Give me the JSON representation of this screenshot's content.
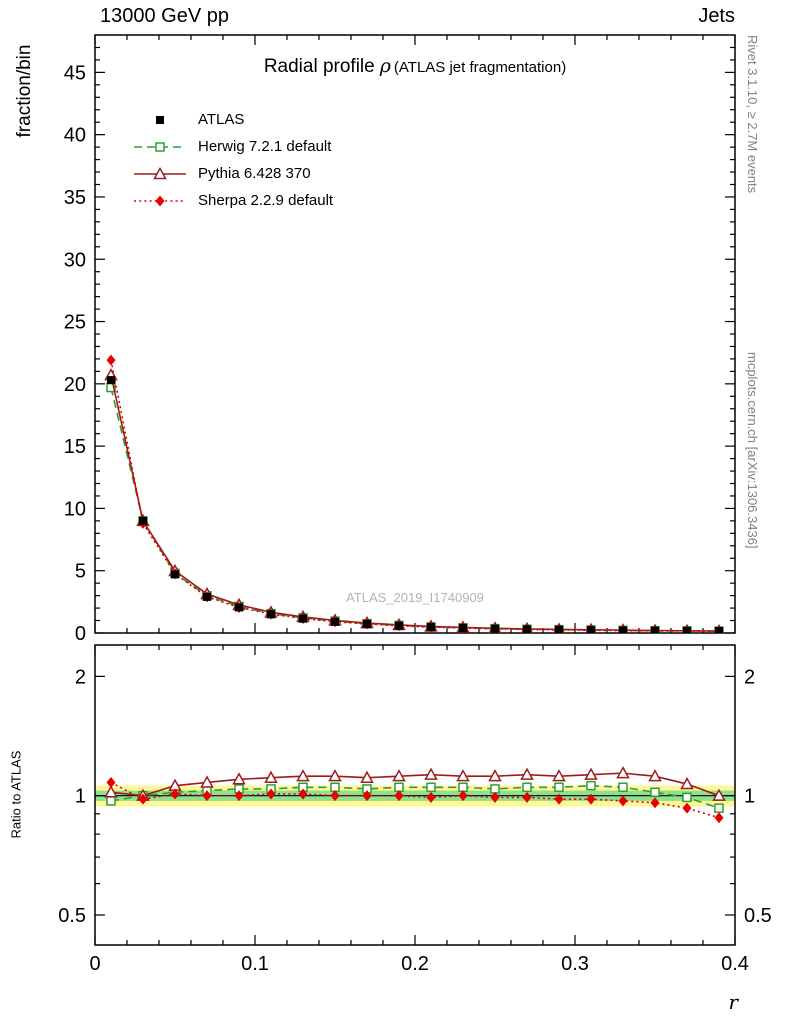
{
  "header": {
    "left": "13000 GeV pp",
    "right": "Jets"
  },
  "side_notes": {
    "top_right": "Rivet 3.1.10, ≥ 2.7M events",
    "bottom_right": "mcplots.cern.ch [arXiv:1306.3436]"
  },
  "watermark": "ATLAS_2019_I1740909",
  "title": {
    "main": "Radial profile",
    "symbol": "ρ",
    "paren": "(ATLAS jet fragmentation)"
  },
  "axes": {
    "ylabel": "fraction/bin",
    "ratio_ylabel": "Ratio to ATLAS",
    "xlabel": "r"
  },
  "chart_data": {
    "type": "line",
    "title": "Radial profile ρ (ATLAS jet fragmentation)",
    "xlabel": "r",
    "ylabel": "fraction/bin",
    "ratio_ylabel": "Ratio to ATLAS",
    "xlim": [
      0,
      0.4
    ],
    "ylim": [
      0,
      48
    ],
    "ratio_ylim": [
      0.42,
      2.4
    ],
    "ratio_scale": "log",
    "grid": false,
    "legend_position": "top-left-inside",
    "x_ticks": {
      "major": [
        0,
        0.1,
        0.2,
        0.3,
        0.4
      ],
      "labels": [
        "0",
        "0.1",
        "0.2",
        "0.3",
        "0.4"
      ],
      "minor_step": 0.02
    },
    "y_ticks": {
      "major": [
        0,
        5,
        10,
        15,
        20,
        25,
        30,
        35,
        40,
        45
      ],
      "labels": [
        "0",
        "5",
        "10",
        "15",
        "20",
        "25",
        "30",
        "35",
        "40",
        "45"
      ],
      "minor_step": 1
    },
    "ratio_ticks": {
      "major": [
        0.5,
        1,
        2
      ],
      "labels": [
        "0.5",
        "1",
        "2"
      ],
      "minor": [
        0.6,
        0.7,
        0.8,
        0.9
      ]
    },
    "x": [
      0.01,
      0.03,
      0.05,
      0.07,
      0.09,
      0.11,
      0.13,
      0.15,
      0.17,
      0.19,
      0.21,
      0.23,
      0.25,
      0.27,
      0.29,
      0.31,
      0.33,
      0.35,
      0.37,
      0.39
    ],
    "series": [
      {
        "name": "ATLAS",
        "color": "#000000",
        "marker": "square-filled",
        "line": "none",
        "values": [
          20.3,
          9.0,
          4.7,
          2.9,
          2.05,
          1.5,
          1.15,
          0.9,
          0.72,
          0.58,
          0.47,
          0.4,
          0.34,
          0.29,
          0.26,
          0.23,
          0.2,
          0.18,
          0.17,
          0.16
        ],
        "ratio": null
      },
      {
        "name": "Herwig 7.2.1 default",
        "color": "#2f9e2f",
        "marker": "square-open",
        "line": "dashed",
        "values": [
          19.7,
          9.0,
          4.79,
          2.99,
          2.13,
          1.56,
          1.21,
          0.95,
          0.75,
          0.61,
          0.49,
          0.42,
          0.35,
          0.3,
          0.27,
          0.24,
          0.21,
          0.18,
          0.17,
          0.15
        ],
        "ratio": [
          0.97,
          1.0,
          1.02,
          1.03,
          1.04,
          1.04,
          1.05,
          1.05,
          1.04,
          1.05,
          1.05,
          1.05,
          1.04,
          1.05,
          1.05,
          1.06,
          1.05,
          1.02,
          0.99,
          0.93
        ]
      },
      {
        "name": "Pythia 6.428 370",
        "color": "#9b1c1c",
        "marker": "triangle-open",
        "line": "solid",
        "values": [
          20.7,
          9.0,
          4.98,
          3.13,
          2.26,
          1.66,
          1.29,
          1.01,
          0.8,
          0.65,
          0.53,
          0.45,
          0.38,
          0.33,
          0.29,
          0.26,
          0.23,
          0.2,
          0.18,
          0.16
        ],
        "ratio": [
          1.02,
          1.0,
          1.06,
          1.08,
          1.1,
          1.11,
          1.12,
          1.12,
          1.11,
          1.12,
          1.13,
          1.12,
          1.12,
          1.13,
          1.12,
          1.13,
          1.14,
          1.12,
          1.07,
          1.0
        ]
      },
      {
        "name": "Sherpa 2.2.9 default",
        "color": "#e60000",
        "marker": "diamond-filled",
        "line": "dotted",
        "values": [
          21.9,
          8.8,
          4.75,
          2.9,
          2.05,
          1.52,
          1.16,
          0.9,
          0.72,
          0.58,
          0.47,
          0.4,
          0.34,
          0.29,
          0.25,
          0.22,
          0.19,
          0.17,
          0.16,
          0.14
        ],
        "ratio": [
          1.08,
          0.98,
          1.01,
          1.0,
          1.0,
          1.01,
          1.01,
          1.0,
          1.0,
          1.0,
          0.99,
          1.0,
          0.99,
          0.99,
          0.98,
          0.98,
          0.97,
          0.96,
          0.93,
          0.88
        ]
      }
    ],
    "ratio_bands": [
      {
        "color": "#fff794",
        "lo": 0.94,
        "hi": 1.06
      },
      {
        "color": "#8fe18f",
        "lo": 0.97,
        "hi": 1.03
      }
    ],
    "ratio_reference": 1
  }
}
